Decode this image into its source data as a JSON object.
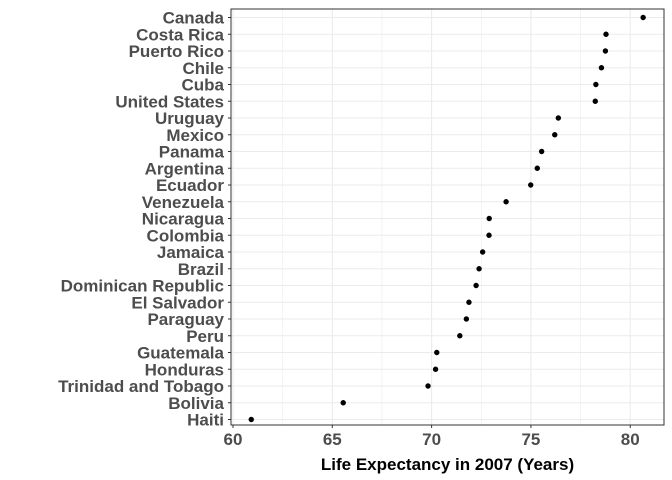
{
  "chart_data": {
    "type": "scatter",
    "title": "",
    "xlabel": "Life Expectancy in 2007 (Years)",
    "ylabel": "",
    "xlim": [
      59.9,
      81.7
    ],
    "x_ticks": [
      60,
      65,
      70,
      75,
      80
    ],
    "x_tick_labels": [
      "60",
      "65",
      "70",
      "75",
      "80"
    ],
    "grid": true,
    "legend": "none",
    "point_color": "#000000",
    "grid_color": "#ebebeb",
    "panel_border_color": "#333333",
    "categories": [
      "Canada",
      "Costa Rica",
      "Puerto Rico",
      "Chile",
      "Cuba",
      "United States",
      "Uruguay",
      "Mexico",
      "Panama",
      "Argentina",
      "Ecuador",
      "Venezuela",
      "Nicaragua",
      "Colombia",
      "Jamaica",
      "Brazil",
      "Dominican Republic",
      "El Salvador",
      "Paraguay",
      "Peru",
      "Guatemala",
      "Honduras",
      "Trinidad and Tobago",
      "Bolivia",
      "Haiti"
    ],
    "values": [
      80.65,
      78.78,
      78.75,
      78.55,
      78.27,
      78.24,
      76.38,
      76.2,
      75.54,
      75.32,
      74.99,
      73.75,
      72.9,
      72.89,
      72.57,
      72.39,
      72.24,
      71.88,
      71.75,
      71.42,
      70.26,
      70.2,
      69.82,
      65.55,
      60.92
    ]
  }
}
